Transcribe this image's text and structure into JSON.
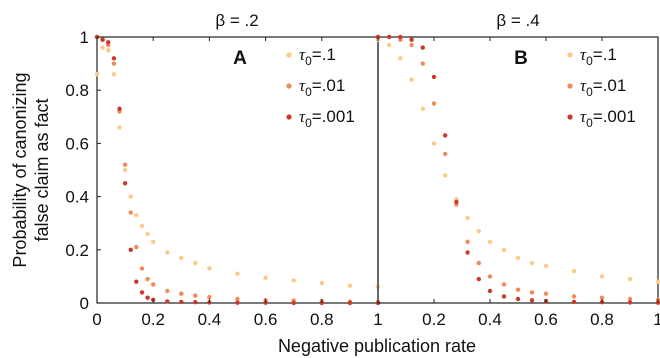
{
  "chart_data": [
    {
      "type": "scatter",
      "title": "β = .2",
      "panel_label": "A",
      "xlim": [
        0,
        1
      ],
      "ylim": [
        0,
        1
      ],
      "xticks": [
        "0",
        "0.2",
        "0.4",
        "0.6",
        "0.8",
        "1"
      ],
      "yticks": [
        "0",
        "0.2",
        "0.4",
        "0.6",
        "0.8",
        "1"
      ],
      "legend_position": "top-right",
      "series": [
        {
          "name": "τ0=.1",
          "color": "#fcc98a",
          "x": [
            0,
            0.02,
            0.04,
            0.06,
            0.08,
            0.1,
            0.12,
            0.14,
            0.16,
            0.18,
            0.2,
            0.25,
            0.3,
            0.35,
            0.4,
            0.5,
            0.6,
            0.7,
            0.8,
            0.9,
            1.0
          ],
          "y": [
            0.86,
            0.96,
            0.95,
            0.86,
            0.66,
            0.5,
            0.4,
            0.33,
            0.29,
            0.26,
            0.23,
            0.19,
            0.17,
            0.15,
            0.13,
            0.11,
            0.095,
            0.085,
            0.075,
            0.065,
            0.06
          ]
        },
        {
          "name": "τ0=.01",
          "color": "#f08a5a",
          "x": [
            0,
            0.02,
            0.04,
            0.06,
            0.08,
            0.1,
            0.12,
            0.14,
            0.16,
            0.18,
            0.2,
            0.25,
            0.3,
            0.35,
            0.4,
            0.5,
            0.6,
            0.7,
            0.8,
            0.9,
            1.0
          ],
          "y": [
            1.0,
            0.99,
            0.97,
            0.9,
            0.72,
            0.52,
            0.34,
            0.21,
            0.13,
            0.09,
            0.07,
            0.045,
            0.035,
            0.028,
            0.022,
            0.015,
            0.011,
            0.009,
            0.007,
            0.005,
            0.004
          ]
        },
        {
          "name": "τ0=.001",
          "color": "#c93a2a",
          "x": [
            0,
            0.02,
            0.04,
            0.06,
            0.08,
            0.1,
            0.12,
            0.14,
            0.16,
            0.18,
            0.2,
            0.25,
            0.3,
            0.35,
            0.4,
            0.5,
            0.6,
            0.7,
            0.8,
            0.9,
            1.0
          ],
          "y": [
            1.0,
            0.99,
            0.98,
            0.92,
            0.73,
            0.45,
            0.2,
            0.08,
            0.04,
            0.02,
            0.012,
            0.006,
            0.004,
            0.003,
            0.002,
            0.001,
            0.001,
            0.0,
            0.0,
            0.0,
            0.0
          ]
        }
      ]
    },
    {
      "type": "scatter",
      "title": "β = .4",
      "panel_label": "B",
      "xlim": [
        0,
        1
      ],
      "ylim": [
        0,
        1
      ],
      "xticks": [
        "0",
        "0.2",
        "0.4",
        "0.6",
        "0.8",
        "1"
      ],
      "yticks": [],
      "legend_position": "top-right",
      "series": [
        {
          "name": "τ0=.1",
          "color": "#fcc98a",
          "x": [
            0,
            0.04,
            0.08,
            0.12,
            0.16,
            0.2,
            0.24,
            0.28,
            0.32,
            0.36,
            0.4,
            0.45,
            0.5,
            0.55,
            0.6,
            0.7,
            0.8,
            0.9,
            1.0
          ],
          "y": [
            0.99,
            0.97,
            0.92,
            0.84,
            0.73,
            0.6,
            0.48,
            0.39,
            0.32,
            0.27,
            0.23,
            0.2,
            0.17,
            0.15,
            0.14,
            0.12,
            0.1,
            0.09,
            0.08
          ]
        },
        {
          "name": "τ0=.01",
          "color": "#f08a5a",
          "x": [
            0,
            0.04,
            0.08,
            0.12,
            0.16,
            0.2,
            0.24,
            0.28,
            0.32,
            0.36,
            0.4,
            0.45,
            0.5,
            0.55,
            0.6,
            0.7,
            0.8,
            0.9,
            1.0
          ],
          "y": [
            1.0,
            1.0,
            0.99,
            0.97,
            0.9,
            0.75,
            0.56,
            0.37,
            0.23,
            0.15,
            0.1,
            0.07,
            0.05,
            0.04,
            0.035,
            0.025,
            0.02,
            0.015,
            0.012
          ]
        },
        {
          "name": "τ0=.001",
          "color": "#c93a2a",
          "x": [
            0,
            0.04,
            0.08,
            0.12,
            0.16,
            0.2,
            0.24,
            0.28,
            0.32,
            0.36,
            0.4,
            0.45,
            0.5,
            0.55,
            0.6,
            0.7,
            0.8,
            0.9,
            1.0
          ],
          "y": [
            1.0,
            1.0,
            1.0,
            0.99,
            0.96,
            0.85,
            0.63,
            0.38,
            0.19,
            0.09,
            0.045,
            0.025,
            0.015,
            0.01,
            0.007,
            0.004,
            0.003,
            0.002,
            0.001
          ]
        }
      ]
    }
  ],
  "shared": {
    "xlabel": "Negative publication rate",
    "ylabel_line1": "Probability of canonizing",
    "ylabel_line2": "false claim as fact",
    "legend": [
      {
        "symbol": "τ",
        "sub": "0",
        "value": "=.1",
        "color": "#fcc98a"
      },
      {
        "symbol": "τ",
        "sub": "0",
        "value": "=.01",
        "color": "#f08a5a"
      },
      {
        "symbol": "τ",
        "sub": "0",
        "value": "=.001",
        "color": "#c93a2a"
      }
    ]
  }
}
